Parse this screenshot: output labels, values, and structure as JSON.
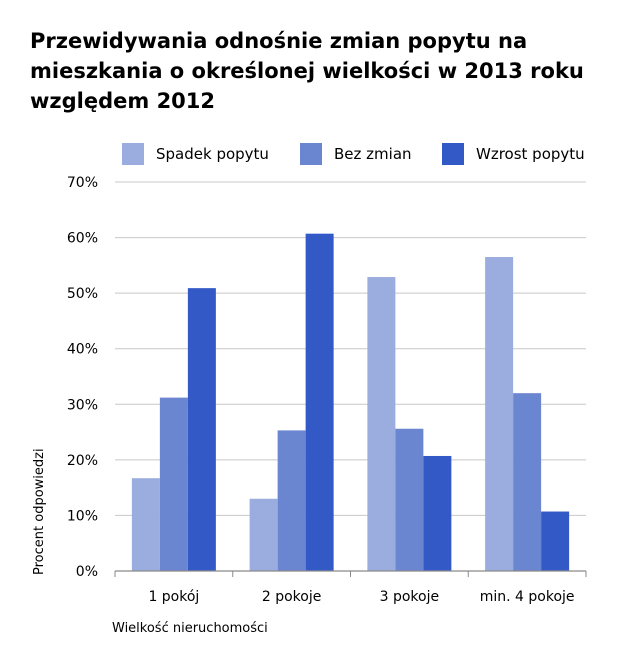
{
  "chart_data": {
    "type": "bar",
    "title": "Przewidywania odnośnie zmian popytu na mieszkania o określonej wielkości w 2013 roku względem 2012",
    "xlabel": "Wielkość nieruchomości",
    "ylabel": "Procent odpowiedzi",
    "ylim": [
      0,
      70
    ],
    "yticks": [
      "0%",
      "10%",
      "20%",
      "30%",
      "40%",
      "50%",
      "60%",
      "70%"
    ],
    "ytick_values": [
      0,
      10,
      20,
      30,
      40,
      50,
      60,
      70
    ],
    "categories": [
      "1 pokój",
      "2 pokoje",
      "3 pokoje",
      "min. 4 pokoje"
    ],
    "series": [
      {
        "name": "Spadek popytu",
        "color": "#9badde",
        "values": [
          16.7,
          13.0,
          52.9,
          56.5
        ]
      },
      {
        "name": "Bez zmian",
        "color": "#6b86d1",
        "values": [
          31.2,
          25.3,
          25.6,
          32.0
        ]
      },
      {
        "name": "Wzrost popytu",
        "color": "#3359c7",
        "values": [
          50.9,
          60.7,
          20.7,
          10.7
        ]
      }
    ],
    "legend_position": "top",
    "grid": "horizontal"
  }
}
